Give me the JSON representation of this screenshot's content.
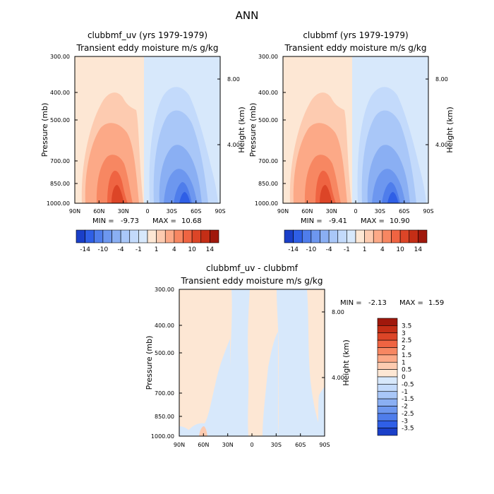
{
  "figure_title": "ANN",
  "colors": {
    "positive_ramp": [
      "#fde7d4",
      "#fdcbb0",
      "#fca987",
      "#f78762",
      "#ef6442",
      "#dc4527",
      "#c42e16",
      "#a0180c",
      "#7d0c06"
    ],
    "negative_ramp": [
      "#d7e8fb",
      "#c3dafb",
      "#a9c7f8",
      "#8aaff3",
      "#6d97ef",
      "#4f7deb",
      "#2f5fe6",
      "#1a3fc8",
      "#0d1f8e"
    ]
  },
  "chart_data": [
    {
      "type": "contour",
      "title": "clubbmf_uv (yrs 1979-1979)",
      "subtitle": "Transient eddy moisture m/s g/kg",
      "xlabel": "",
      "ylabel": "Pressure (mb)",
      "ylabel_right": "Height (km)",
      "x_ticks": [
        "90N",
        "60N",
        "30N",
        "0",
        "30S",
        "60S",
        "90S"
      ],
      "x_values": [
        90,
        60,
        30,
        0,
        -30,
        -60,
        -90
      ],
      "y_ticks": [
        300,
        400,
        500,
        700,
        850,
        1000
      ],
      "y_right_ticks": [
        8,
        4
      ],
      "y_scale": "log-pressure",
      "min_label": "MIN =",
      "min": -9.73,
      "max_label": "MAX =",
      "max": 10.68,
      "colorbar_levels": [
        -14,
        -12,
        -10,
        -8,
        -6,
        -4,
        -2,
        -1,
        0,
        1,
        2,
        4,
        6,
        8,
        10,
        12,
        14
      ],
      "colorbar_tick_labels": [
        "-14",
        "-10",
        "-4",
        "-1",
        "1",
        "4",
        "10",
        "14"
      ]
    },
    {
      "type": "contour",
      "title": "clubbmf (yrs 1979-1979)",
      "subtitle": "Transient eddy moisture m/s g/kg",
      "xlabel": "",
      "ylabel": "Pressure (mb)",
      "ylabel_right": "Height (km)",
      "x_ticks": [
        "90N",
        "60N",
        "30N",
        "0",
        "30S",
        "60S",
        "90S"
      ],
      "x_values": [
        90,
        60,
        30,
        0,
        -30,
        -60,
        -90
      ],
      "y_ticks": [
        300,
        400,
        500,
        700,
        850,
        1000
      ],
      "y_right_ticks": [
        8,
        4
      ],
      "y_scale": "log-pressure",
      "min_label": "MIN =",
      "min": -9.41,
      "max_label": "MAX =",
      "max": 10.9,
      "colorbar_levels": [
        -14,
        -12,
        -10,
        -8,
        -6,
        -4,
        -2,
        -1,
        0,
        1,
        2,
        4,
        6,
        8,
        10,
        12,
        14
      ],
      "colorbar_tick_labels": [
        "-14",
        "-10",
        "-4",
        "-1",
        "1",
        "4",
        "10",
        "14"
      ]
    },
    {
      "type": "contour",
      "title": "clubbmf_uv - clubbmf",
      "subtitle": "Transient eddy moisture m/s g/kg",
      "xlabel": "",
      "ylabel": "Pressure (mb)",
      "ylabel_right": "Height (km)",
      "x_ticks": [
        "90N",
        "60N",
        "30N",
        "0",
        "30S",
        "60S",
        "90S"
      ],
      "x_values": [
        90,
        60,
        30,
        0,
        -30,
        -60,
        -90
      ],
      "y_ticks": [
        300,
        400,
        500,
        700,
        850,
        1000
      ],
      "y_right_ticks": [
        8,
        4
      ],
      "y_scale": "log-pressure",
      "min_label": "MIN =",
      "min": -2.13,
      "max_label": "MAX =",
      "max": 1.59,
      "colorbar_tick_labels": [
        "3.5",
        "3",
        "2.5",
        "2",
        "1.5",
        "1",
        "0.5",
        "0",
        "-0.5",
        "-1",
        "-1.5",
        "-2",
        "-2.5",
        "-3",
        "-3.5"
      ]
    }
  ]
}
